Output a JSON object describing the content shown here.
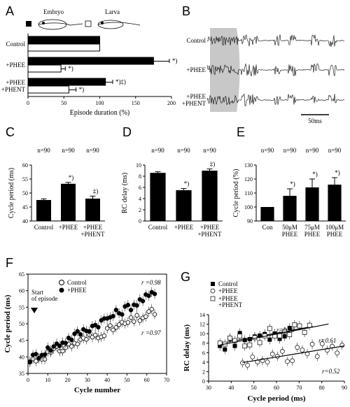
{
  "panels": {
    "A": "A",
    "B": "B",
    "C": "C",
    "D": "D",
    "E": "E",
    "F": "F",
    "G": "G"
  },
  "icons": {
    "embryo": "tadpole-embryo-icon",
    "larva": "tadpole-larva-icon"
  },
  "chart_data": [
    {
      "id": "A",
      "type": "bar",
      "orientation": "horizontal",
      "legend": [
        "Embryo",
        "Larva"
      ],
      "groups": [
        "Control",
        "+PHEE",
        "+PHEE\n+PHENT"
      ],
      "series": [
        {
          "name": "Embryo",
          "values": [
            100,
            175,
            108
          ],
          "errors": [
            0,
            22,
            10
          ]
        },
        {
          "name": "Larva",
          "values": [
            100,
            46,
            57
          ],
          "errors": [
            0,
            6,
            10
          ]
        }
      ],
      "annotations": [
        {
          "group": 1,
          "series": 0,
          "text": "*)"
        },
        {
          "group": 1,
          "series": 1,
          "text": "*)"
        },
        {
          "group": 2,
          "series": 0,
          "text": "*)‡)"
        },
        {
          "group": 2,
          "series": 1,
          "text": "*)"
        }
      ],
      "xlabel": "Episode duration (%)",
      "xlim": [
        0,
        200
      ],
      "xticks": [
        0,
        50,
        100,
        150,
        200
      ]
    },
    {
      "id": "B",
      "type": "traces",
      "labels": [
        "Control",
        "+PHEE",
        "+PHEE\n+PHENT"
      ],
      "scalebar": "50ms"
    },
    {
      "id": "C",
      "type": "bar",
      "categories": [
        "Control",
        "+PHEE",
        "+PHEE\n+PHENT"
      ],
      "values": [
        47.5,
        53.3,
        48.0
      ],
      "errors": [
        0.4,
        0.5,
        0.9
      ],
      "n_labels": [
        "n=90",
        "n=90",
        "n=90"
      ],
      "annotations": [
        "",
        "*)",
        "‡)"
      ],
      "ylabel": "Cycle period (ms)",
      "ylim": [
        40,
        60
      ],
      "yticks": [
        40,
        45,
        50,
        55,
        60
      ]
    },
    {
      "id": "D",
      "type": "bar",
      "categories": [
        "Control",
        "+PHEE",
        "+PHEE\n+PHENT"
      ],
      "values": [
        8.6,
        5.5,
        9.0
      ],
      "errors": [
        0.2,
        0.3,
        0.3
      ],
      "n_labels": [
        "n=90",
        "n=90",
        "n=90"
      ],
      "annotations": [
        "",
        "*)",
        "‡)"
      ],
      "ylabel": "RC delay (ms)",
      "ylim": [
        0,
        10
      ],
      "yticks": [
        0,
        2,
        4,
        6,
        8,
        10
      ]
    },
    {
      "id": "E",
      "type": "bar",
      "categories": [
        "Con",
        "50μM\nPHEE",
        "75μM\nPHEE",
        "100μM\nPHEE"
      ],
      "values": [
        100,
        108,
        114,
        116
      ],
      "errors": [
        0,
        5,
        6,
        5
      ],
      "n_labels": [
        "n=90",
        "n=90",
        "n=90",
        "n=90"
      ],
      "annotations": [
        "",
        "*)",
        "*)",
        "*)"
      ],
      "ylabel": "Cycle period (%)",
      "ylim": [
        90,
        130
      ],
      "yticks": [
        90,
        100,
        110,
        120,
        130
      ]
    },
    {
      "id": "F",
      "type": "scatter",
      "xlabel": "Cycle number",
      "ylabel": "Cycle period (ms)",
      "xlim": [
        0,
        70
      ],
      "ylim": [
        35,
        65
      ],
      "xticks": [
        0,
        10,
        20,
        30,
        40,
        50,
        60,
        70
      ],
      "yticks": [
        35,
        40,
        45,
        50,
        55,
        60,
        65
      ],
      "legend": [
        "Control",
        "+PHEE"
      ],
      "annotations": [
        "Start\nof episode",
        "r =0.98",
        "r =0.97"
      ],
      "series": [
        {
          "name": "Control",
          "marker": "open-circle",
          "fit": [
            38.5,
            0.235
          ],
          "r": 0.97,
          "x_range": [
            1,
            65
          ],
          "err": 1.5
        },
        {
          "name": "+PHEE",
          "marker": "filled-circle",
          "fit": [
            39.0,
            0.315
          ],
          "r": 0.98,
          "x_range": [
            1,
            65
          ],
          "err": 1.5
        }
      ]
    },
    {
      "id": "G",
      "type": "scatter",
      "xlabel": "Cycle period (ms)",
      "ylabel": "RC delay (ms)",
      "xlim": [
        30,
        90
      ],
      "ylim": [
        0,
        14
      ],
      "xticks": [
        30,
        40,
        50,
        60,
        70,
        80,
        90
      ],
      "yticks": [
        0,
        2,
        4,
        6,
        8,
        10,
        12,
        14
      ],
      "legend": [
        "Control",
        "+PHEE",
        "+PHEE\n+PHENT"
      ],
      "series": [
        {
          "name": "Control",
          "marker": "filled-square",
          "fit": [
            4.9,
            0.087
          ],
          "r": 0.78,
          "x_range": [
            35,
            68
          ]
        },
        {
          "name": "+PHEE",
          "marker": "open-circle",
          "fit": [
            0.4,
            0.078
          ],
          "r": 0.52,
          "x_range": [
            45,
            90
          ]
        },
        {
          "name": "+PHEE\n+PHENT",
          "marker": "open-square",
          "fit": [
            4.4,
            0.092
          ],
          "r": 0.61,
          "x_range": [
            35,
            75
          ]
        }
      ],
      "r_labels": [
        "r=0.78",
        "r=0.61",
        "r=0.52"
      ]
    }
  ]
}
